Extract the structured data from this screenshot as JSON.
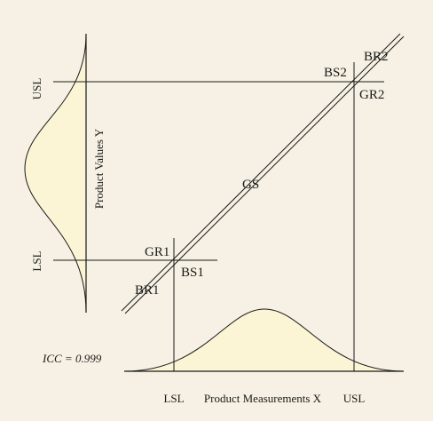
{
  "labels": {
    "usl_y": "USL",
    "lsl_y": "LSL",
    "y_axis": "Product Values Y",
    "lsl_x": "LSL",
    "usl_x": "USL",
    "x_axis": "Product Measurements X",
    "icc": "ICC = 0.999",
    "br2": "BR2",
    "bs2": "BS2",
    "gr2": "GR2",
    "gs": "GS",
    "gr1": "GR1",
    "bs1": "BS1",
    "br1": "BR1"
  },
  "colors": {
    "background": "#f6f1e4",
    "curve_fill": "#fbf5d6",
    "line": "#1a1a1a"
  }
}
